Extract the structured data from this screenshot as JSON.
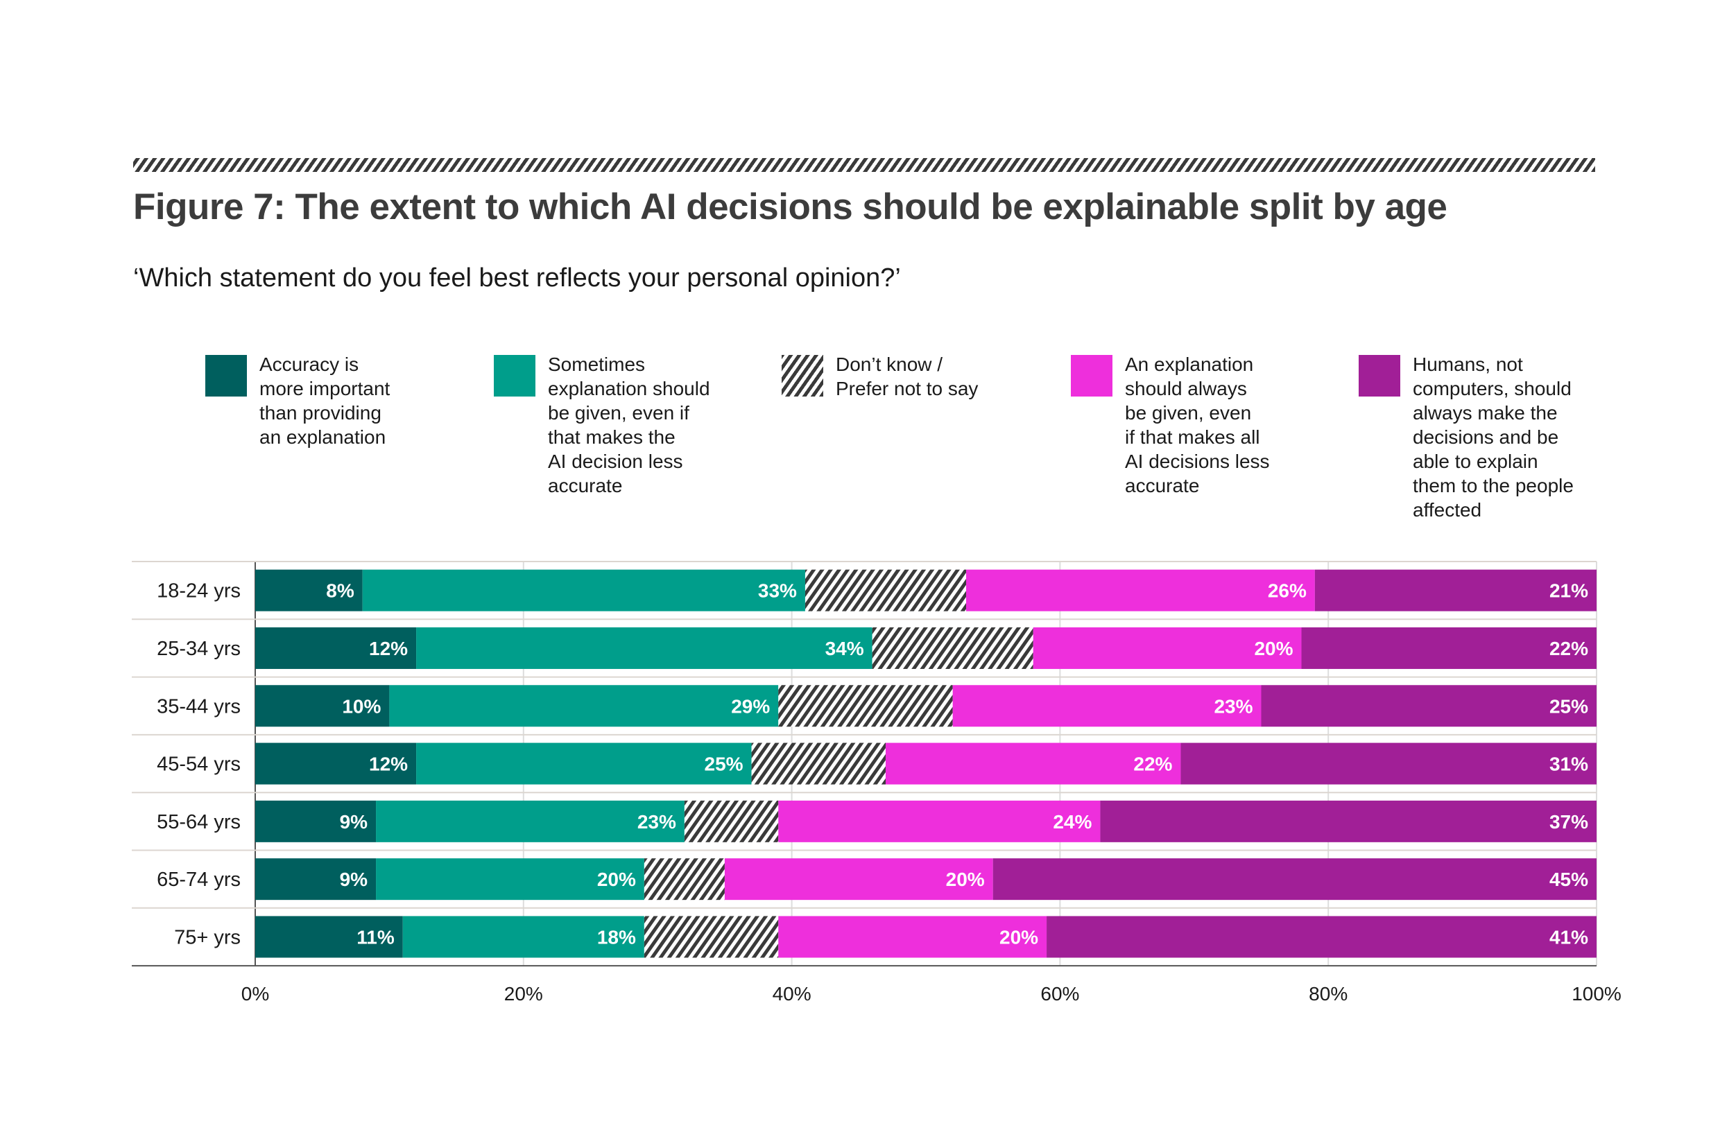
{
  "title": "Figure 7: The extent to which AI decisions should be explainable split by age",
  "subtitle": "‘Which statement do you feel best reflects your personal opinion?’",
  "chart_data": {
    "type": "bar",
    "orientation": "horizontal",
    "stacked": true,
    "title": "Figure 7: The extent to which AI decisions should be explainable split by age",
    "categories": [
      "18-24 yrs",
      "25-34 yrs",
      "35-44 yrs",
      "45-54 yrs",
      "55-64 yrs",
      "65-74 yrs",
      "75+ yrs"
    ],
    "series": [
      {
        "name": "Accuracy is more important than providing an explanation",
        "color": "#005f5e",
        "values": [
          8,
          12,
          10,
          12,
          9,
          9,
          11
        ],
        "labeled": true
      },
      {
        "name": "Sometimes explanation should be given, even if that makes the AI decision less accurate",
        "color": "#009e8b",
        "values": [
          33,
          34,
          29,
          25,
          23,
          20,
          18
        ],
        "labeled": true
      },
      {
        "name": "Don’t know / Prefer not to say",
        "color": "hatch",
        "values": [
          12,
          12,
          13,
          10,
          7,
          6,
          10
        ],
        "labeled": false
      },
      {
        "name": "An explanation should always be given, even if that makes all AI decisions less accurate",
        "color": "#ee2fdc",
        "values": [
          26,
          20,
          23,
          22,
          24,
          20,
          20
        ],
        "labeled": true
      },
      {
        "name": "Humans, not computers, should always make the decisions and be able to explain them to the people affected",
        "color": "#a11f97",
        "values": [
          21,
          22,
          25,
          31,
          37,
          45,
          41
        ],
        "labeled": true
      }
    ],
    "legend_labels": [
      "Accuracy is\nmore important\nthan providing\nan explanation",
      "Sometimes\nexplanation should\nbe given, even if\nthat makes the\nAI decision less\naccurate",
      "Don’t know /\nPrefer not to say",
      "An explanation\nshould always\nbe given, even\nif that makes all\nAI decisions less\naccurate",
      "Humans, not\ncomputers, should\nalways make the\ndecisions and be\nable to explain\nthem to the people\naffected"
    ],
    "xlim": [
      0,
      100
    ],
    "xticks": [
      "0%",
      "20%",
      "40%",
      "60%",
      "80%",
      "100%"
    ],
    "xlabel": "",
    "ylabel": "",
    "grid": true,
    "legend_position": "top"
  }
}
